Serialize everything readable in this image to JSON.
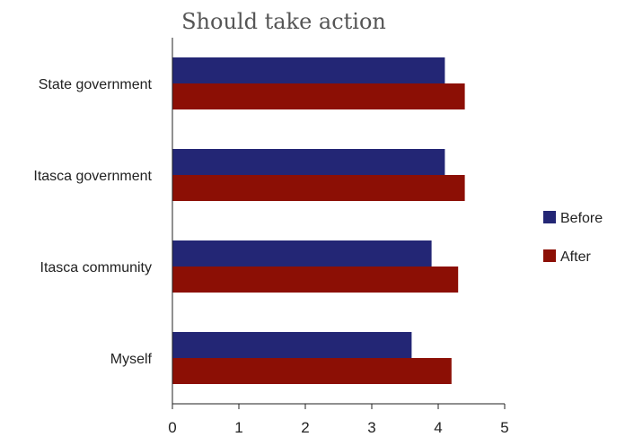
{
  "chart_data": {
    "type": "bar",
    "orientation": "horizontal",
    "title": "Should take action",
    "xlabel": "",
    "ylabel": "",
    "xlim": [
      0,
      5
    ],
    "xticks": [
      "0",
      "1",
      "2",
      "3",
      "4",
      "5"
    ],
    "categories": [
      "State government",
      "Itasca government",
      "Itasca community",
      "Myself"
    ],
    "series": [
      {
        "name": "Before",
        "color": "#232675",
        "values": [
          4.1,
          4.1,
          3.9,
          3.6
        ]
      },
      {
        "name": "After",
        "color": "#8c0f05",
        "values": [
          4.4,
          4.4,
          4.3,
          4.2
        ]
      }
    ],
    "legend": "right",
    "grid": false
  }
}
